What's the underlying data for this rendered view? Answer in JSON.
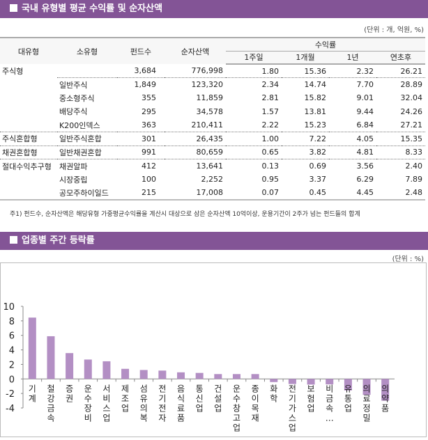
{
  "section1": {
    "title": "국내 유형별 평균 수익률 및 순자산액",
    "unit": "(단위 : 개, 억원, %)",
    "headers": {
      "major": "대유형",
      "minor": "소유형",
      "funds": "펀드수",
      "assets": "순자산액",
      "returns": "수익률",
      "w1": "1주일",
      "m1": "1개월",
      "y1": "1년",
      "ytd": "연초후"
    },
    "rows": [
      [
        "주식형",
        "",
        "3,684",
        "776,998",
        "1.80",
        "15.36",
        "2.32",
        "26.21"
      ],
      [
        "",
        "일반주식",
        "1,849",
        "123,320",
        "2.34",
        "14.74",
        "7.70",
        "28.89"
      ],
      [
        "",
        "중소형주식",
        "355",
        "11,859",
        "2.81",
        "15.82",
        "9.01",
        "32.04"
      ],
      [
        "",
        "배당주식",
        "295",
        "34,578",
        "1.57",
        "13.81",
        "9.44",
        "24.26"
      ],
      [
        "",
        "K200인덱스",
        "363",
        "210,411",
        "2.22",
        "15.23",
        "6.84",
        "27.21"
      ],
      [
        "주식혼합형",
        "일반주식혼합",
        "301",
        "26,435",
        "1.00",
        "7.22",
        "4.05",
        "15.35"
      ],
      [
        "채권혼합형",
        "일반채권혼합",
        "991",
        "80,659",
        "0.65",
        "3.82",
        "4.81",
        "8.33"
      ],
      [
        "절대수익추구형",
        "채권알파",
        "412",
        "13,641",
        "0.13",
        "0.69",
        "3.56",
        "2.40"
      ],
      [
        "",
        "시장중립",
        "100",
        "2,252",
        "0.95",
        "3.37",
        "6.29",
        "7.89"
      ],
      [
        "",
        "공모주하이일드",
        "215",
        "17,008",
        "0.07",
        "0.45",
        "4.45",
        "2.48"
      ]
    ],
    "note": "주1) 펀드수, 순자산액은 해당유형 가중평균수익률을 계산시 대상으로 삼은 순자산액 10억이상, 운용기간이 2주가 넘는 펀드들의 합계"
  },
  "section2": {
    "title": "업종별 주간 등락률",
    "unit": "(단위 : %)"
  },
  "colors": {
    "header": "#835496",
    "bar": "#b38fc4"
  },
  "chart_data": {
    "type": "bar",
    "categories": [
      "기계",
      "철강금속",
      "증권",
      "운수장비",
      "서비스업",
      "제조업",
      "섬유의복",
      "전기전자",
      "음식료품",
      "통신업",
      "건설업",
      "운수창고업",
      "종이목재",
      "화학",
      "전기가스업",
      "보험업",
      "비금속…",
      "유통업",
      "의료정밀",
      "의약품"
    ],
    "values": [
      8.45,
      5.88,
      3.56,
      2.67,
      2.43,
      1.39,
      1.23,
      1.15,
      0.91,
      0.83,
      0.67,
      0.67,
      0.67,
      -0.43,
      -0.7,
      -0.78,
      -0.75,
      -1.58,
      -2.19,
      -3.0
    ],
    "ylim": [
      -4,
      10
    ],
    "yticks": [
      "10",
      "8",
      "6",
      "4",
      "2",
      "0",
      "-2",
      "-4"
    ],
    "grid": false
  }
}
